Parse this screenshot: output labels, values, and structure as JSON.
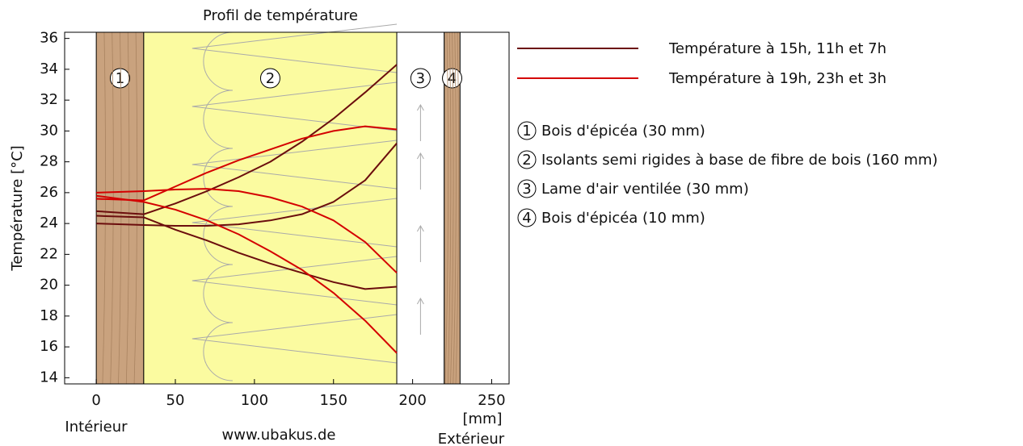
{
  "chart_data": {
    "type": "line",
    "title": "Profil de température",
    "y_label": "Température [°C]",
    "x_unit": "[mm]",
    "inside_label": "Intérieur",
    "outside_label": "Extérieur",
    "source": "www.ubakus.de",
    "xlim": [
      -20,
      261
    ],
    "ylim": [
      13.6,
      36.4
    ],
    "xticks": [
      0,
      50,
      100,
      150,
      200,
      250
    ],
    "yticks": [
      14,
      16,
      18,
      20,
      22,
      24,
      26,
      28,
      30,
      32,
      34,
      36
    ],
    "layers": [
      {
        "number": "1",
        "name": "Bois d'épicéa (30 mm)",
        "start": 0,
        "end": 30,
        "color": "#c9a27e"
      },
      {
        "number": "2",
        "name": "Isolants semi rigides à base de fibre de bois (160 mm)",
        "start": 30,
        "end": 190,
        "color": "#fbfba0"
      },
      {
        "number": "3",
        "name": "Lame d'air ventilée (30 mm)",
        "start": 190,
        "end": 220,
        "color": "#ffffff"
      },
      {
        "number": "4",
        "name": "Bois d'épicéa (10 mm)",
        "start": 220,
        "end": 230,
        "color": "#c9a27e"
      }
    ],
    "x": [
      0,
      30,
      50,
      70,
      90,
      110,
      130,
      150,
      170,
      190
    ],
    "series": [
      {
        "name": "Température à 15h, 11h et 7h",
        "color": "#6b0d0d",
        "curves": [
          [
            24.8,
            24.6,
            25.3,
            26.1,
            27.0,
            28.0,
            29.3,
            30.8,
            32.5,
            34.3
          ],
          [
            24.0,
            23.9,
            23.85,
            23.85,
            23.95,
            24.2,
            24.6,
            25.4,
            26.8,
            29.2
          ],
          [
            24.5,
            24.4,
            23.6,
            22.9,
            22.1,
            21.4,
            20.8,
            20.2,
            19.75,
            19.9
          ]
        ]
      },
      {
        "name": "Température à 19h, 23h et 3h",
        "color": "#d40000",
        "curves": [
          [
            26.0,
            26.1,
            26.2,
            26.25,
            26.1,
            25.7,
            25.1,
            24.2,
            22.8,
            20.8
          ],
          [
            25.8,
            25.4,
            24.9,
            24.2,
            23.3,
            22.2,
            21.0,
            19.5,
            17.7,
            15.6
          ],
          [
            25.6,
            25.5,
            26.4,
            27.3,
            28.1,
            28.8,
            29.5,
            30.0,
            30.3,
            30.1
          ]
        ]
      }
    ]
  }
}
